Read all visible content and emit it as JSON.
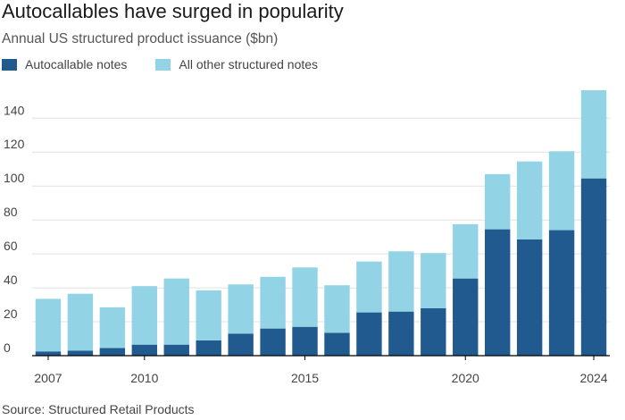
{
  "header": {
    "title": "Autocallables have surged in popularity",
    "subtitle": "Annual US structured product issuance ($bn)"
  },
  "footer": {
    "source": "Source: Structured Retail Products"
  },
  "colors": {
    "autocallable": "#215a8e",
    "other": "#93d3e6",
    "grid": "#e0e0e0",
    "axis": "#000000"
  },
  "chart_data": {
    "type": "bar",
    "stacked": true,
    "categories": [
      "2007",
      "2008",
      "2009",
      "2010",
      "2011",
      "2012",
      "2013",
      "2014",
      "2015",
      "2016",
      "2017",
      "2018",
      "2019",
      "2020",
      "2021",
      "2022",
      "2023",
      "2024"
    ],
    "x_tick_labels": [
      "2007",
      "2010",
      "2015",
      "2020",
      "2024"
    ],
    "series": [
      {
        "name": "Autocallable notes",
        "color": "#215a8e",
        "values": [
          2.5,
          3,
          4.5,
          6.5,
          6.5,
          9,
          13,
          16,
          17,
          13.5,
          25.5,
          26,
          28,
          45.5,
          74.5,
          68.5,
          74,
          104.5
        ]
      },
      {
        "name": "All other structured notes",
        "color": "#93d3e6",
        "values": [
          31,
          33.5,
          24,
          34.5,
          39,
          29.5,
          29,
          30.5,
          35,
          28,
          30,
          35.5,
          32.5,
          32,
          32.5,
          46,
          46.5,
          52
        ]
      }
    ],
    "ylim": [
      0,
      157
    ],
    "yticks": [
      0,
      20,
      40,
      60,
      80,
      100,
      120,
      140
    ],
    "grid": true,
    "legend": "top-left"
  }
}
